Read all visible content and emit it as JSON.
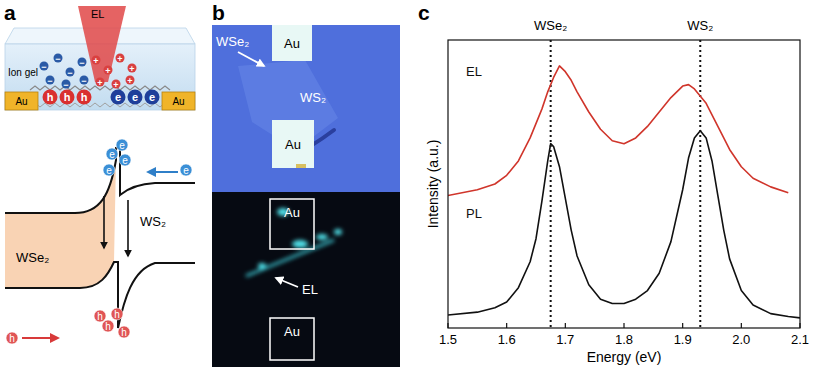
{
  "panel_a": {
    "label": "a",
    "beam": "EL",
    "gel": "Ion gel",
    "electrodes": [
      "Au",
      "Au"
    ],
    "holes": [
      "h",
      "h",
      "h"
    ],
    "electrons": [
      "e",
      "e",
      "e"
    ],
    "anion": "−",
    "cation": "+",
    "band": {
      "left": "WSe₂",
      "right": "WS₂",
      "electrons": [
        "e",
        "e",
        "e",
        "e",
        "e"
      ],
      "holes": [
        "h",
        "h",
        "h",
        "h",
        "h"
      ]
    }
  },
  "panel_b": {
    "label": "b",
    "optical": {
      "electrodes": [
        "Au",
        "Au"
      ],
      "flakes": [
        "WSe₂",
        "WS₂"
      ]
    },
    "emission": {
      "electrodes": [
        "Au",
        "Au"
      ],
      "label": "EL"
    }
  },
  "chart_data": {
    "type": "line",
    "panel_label": "c",
    "xlabel": "Energy (eV)",
    "ylabel": "Intensity (a.u.)",
    "xlim": [
      1.5,
      2.1
    ],
    "xticks": [
      1.5,
      1.6,
      1.7,
      1.8,
      1.9,
      {
        "value": 2,
        "label": "2.0"
      },
      2.1
    ],
    "ylim": [
      0,
      10
    ],
    "tick_labels": "x",
    "annotations": [
      {
        "x": 1.675,
        "label": "WSe₂"
      },
      {
        "x": 1.93,
        "label": "WS₂"
      }
    ],
    "series": [
      {
        "name": "EL",
        "color": "#d0352b",
        "x": [
          1.5,
          1.55,
          1.58,
          1.6,
          1.62,
          1.64,
          1.66,
          1.67,
          1.68,
          1.69,
          1.7,
          1.71,
          1.72,
          1.74,
          1.76,
          1.78,
          1.8,
          1.82,
          1.84,
          1.86,
          1.88,
          1.9,
          1.91,
          1.92,
          1.94,
          1.96,
          1.98,
          2.0,
          2.02,
          2.05,
          2.08
        ],
        "values": [
          4.6,
          4.8,
          5.0,
          5.3,
          5.8,
          6.6,
          7.6,
          8.2,
          8.7,
          9.1,
          8.9,
          8.6,
          8.2,
          7.5,
          6.9,
          6.5,
          6.4,
          6.6,
          7.0,
          7.5,
          8.0,
          8.4,
          8.45,
          8.3,
          7.8,
          7.0,
          6.2,
          5.6,
          5.2,
          4.9,
          4.7
        ]
      },
      {
        "name": "PL",
        "color": "#111111",
        "x": [
          1.5,
          1.55,
          1.58,
          1.6,
          1.62,
          1.64,
          1.65,
          1.66,
          1.67,
          1.675,
          1.68,
          1.69,
          1.7,
          1.71,
          1.72,
          1.74,
          1.76,
          1.78,
          1.8,
          1.82,
          1.84,
          1.86,
          1.88,
          1.9,
          1.91,
          1.92,
          1.93,
          1.94,
          1.95,
          1.96,
          1.97,
          1.98,
          2.0,
          2.02,
          2.05,
          2.08,
          2.1
        ],
        "values": [
          0.45,
          0.55,
          0.7,
          0.9,
          1.4,
          2.3,
          3.1,
          4.4,
          5.8,
          6.4,
          6.3,
          5.6,
          4.5,
          3.4,
          2.5,
          1.5,
          1.0,
          0.85,
          0.85,
          1.0,
          1.3,
          1.9,
          3.0,
          4.8,
          5.9,
          6.6,
          6.85,
          6.6,
          5.8,
          4.6,
          3.4,
          2.4,
          1.3,
          0.8,
          0.5,
          0.4,
          0.35
        ]
      }
    ]
  }
}
